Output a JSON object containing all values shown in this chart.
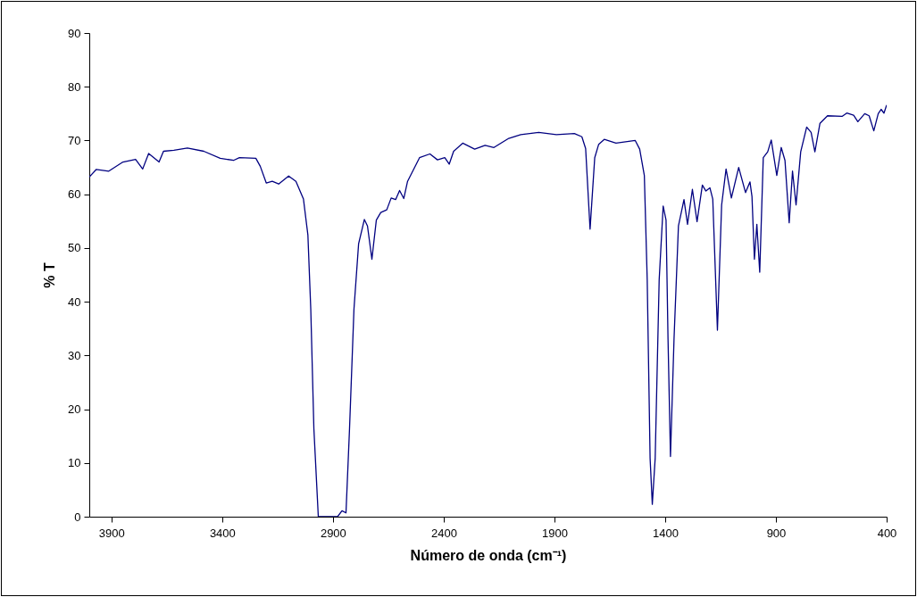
{
  "chart_data": {
    "type": "line",
    "xlabel": "Número de onda (cm⁻¹)",
    "ylabel": "% T",
    "xlim": [
      4000,
      400
    ],
    "xticks": [
      3900,
      3400,
      2900,
      2400,
      1900,
      1400,
      900,
      400
    ],
    "ylim": [
      0,
      90
    ],
    "yticks": [
      0,
      10,
      20,
      30,
      40,
      50,
      60,
      70,
      80,
      90
    ],
    "grid": false,
    "color": "#000080",
    "x": [
      4000,
      3969,
      3912,
      3848,
      3791,
      3759,
      3732,
      3685,
      3665,
      3618,
      3557,
      3483,
      3409,
      3349,
      3322,
      3248,
      3228,
      3201,
      3174,
      3145,
      3100,
      3067,
      3033,
      3013,
      3000,
      2986,
      2966,
      2879,
      2859,
      2841,
      2825,
      2805,
      2784,
      2758,
      2744,
      2724,
      2704,
      2684,
      2657,
      2637,
      2617,
      2599,
      2580,
      2563,
      2509,
      2462,
      2428,
      2395,
      2375,
      2355,
      2314,
      2260,
      2213,
      2173,
      2106,
      2052,
      1971,
      1891,
      1810,
      1776,
      1759,
      1739,
      1718,
      1700,
      1675,
      1622,
      1535,
      1515,
      1494,
      1481,
      1468,
      1458,
      1445,
      1427,
      1409,
      1396,
      1387,
      1376,
      1360,
      1340,
      1315,
      1299,
      1277,
      1256,
      1232,
      1216,
      1198,
      1185,
      1164,
      1145,
      1125,
      1101,
      1068,
      1037,
      1017,
      1008,
      997,
      986,
      973,
      957,
      937,
      921,
      896,
      876,
      859,
      840,
      825,
      809,
      788,
      761,
      741,
      724,
      701,
      667,
      600,
      580,
      549,
      530,
      499,
      479,
      458,
      438,
      425,
      412,
      400
    ],
    "values": [
      63.2,
      64.6,
      64.3,
      66.0,
      66.5,
      64.7,
      67.6,
      66.0,
      68.0,
      68.2,
      68.6,
      68.0,
      66.7,
      66.3,
      66.8,
      66.7,
      65.2,
      62.1,
      62.4,
      61.9,
      63.4,
      62.4,
      59.1,
      52.4,
      38.6,
      16.4,
      0,
      0,
      1.1,
      0.7,
      16.4,
      38.6,
      50.8,
      55.3,
      54.1,
      47.9,
      55.2,
      56.6,
      57.1,
      59.3,
      59.0,
      60.7,
      59.2,
      62.4,
      66.8,
      67.5,
      66.4,
      66.8,
      65.6,
      68.0,
      69.5,
      68.4,
      69.1,
      68.7,
      70.4,
      71.1,
      71.5,
      71.1,
      71.3,
      70.7,
      68.5,
      53.5,
      66.8,
      69.3,
      70.2,
      69.5,
      70.0,
      68.4,
      63.5,
      44.1,
      10.9,
      2.3,
      10.9,
      44.1,
      57.8,
      55.2,
      33.0,
      11.2,
      33.0,
      54.1,
      59.0,
      54.4,
      60.9,
      54.9,
      61.7,
      60.6,
      61.2,
      59.1,
      34.7,
      58.0,
      64.7,
      59.3,
      65.0,
      60.3,
      62.3,
      59.6,
      47.9,
      54.4,
      45.5,
      66.8,
      67.9,
      70.1,
      63.5,
      68.7,
      66.3,
      54.7,
      64.3,
      58.0,
      67.9,
      72.5,
      71.5,
      67.9,
      73.2,
      74.6,
      74.5,
      75.1,
      74.7,
      73.5,
      75.0,
      74.6,
      71.8,
      75.0,
      75.8,
      75.1,
      76.6
    ]
  }
}
